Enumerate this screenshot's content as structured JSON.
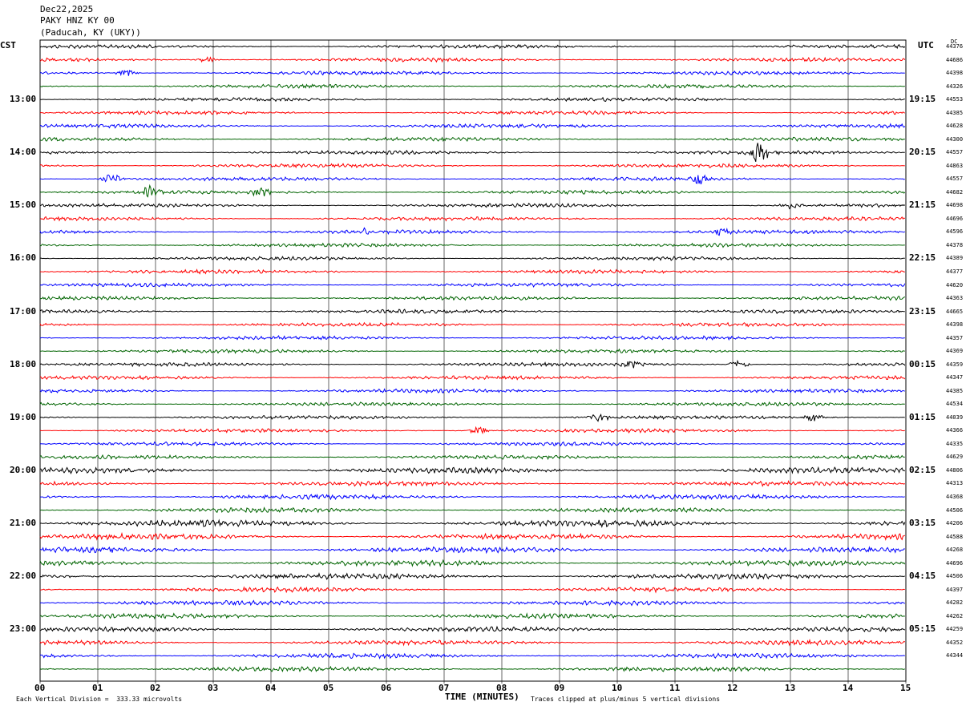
{
  "header": {
    "date": "Dec22,2025",
    "station": "PAKY HNZ KY 00",
    "location": "(Paducah, KY (UKY))"
  },
  "left_zone": "CST",
  "right_zone": "UTC",
  "dc_label": "DC",
  "footer": {
    "xlabel": "TIME (MINUTES)",
    "scale_note": "Each Vertical Division =  333.33 microvolts",
    "clip_note": "Traces clipped at plus/minus 5 vertical divisions"
  },
  "colors": {
    "cycle": [
      "#000000",
      "#ff0000",
      "#0000ff",
      "#006400"
    ],
    "grid": "#000000"
  },
  "chart_data": {
    "type": "line",
    "subtype": "helicorder",
    "title": "Dec22,2025 PAKY HNZ KY 00 (Paducah, KY (UKY))",
    "xlabel": "TIME (MINUTES)",
    "xlim": [
      0,
      15
    ],
    "x_ticks": [
      "00",
      "01",
      "02",
      "03",
      "04",
      "05",
      "06",
      "07",
      "08",
      "09",
      "10",
      "11",
      "12",
      "13",
      "14",
      "15"
    ],
    "lines_per_hour": 4,
    "line_count": 48,
    "left_hour_labels": [
      "13:00",
      "14:00",
      "15:00",
      "16:00",
      "17:00",
      "18:00",
      "19:00",
      "20:00",
      "21:00",
      "22:00",
      "23:00"
    ],
    "right_hour_labels": [
      "19:15",
      "20:15",
      "21:15",
      "22:15",
      "23:15",
      "00:15",
      "01:15",
      "02:15",
      "03:15",
      "04:15",
      "05:15"
    ],
    "dc_values": [
      "44376",
      "44686",
      "44398",
      "44326",
      "44553",
      "44385",
      "44628",
      "44300",
      "44557",
      "44863",
      "44557",
      "44682",
      "44698",
      "44696",
      "44596",
      "44378",
      "44389",
      "44377",
      "44620",
      "44363",
      "44665",
      "44398",
      "44357",
      "44369",
      "44359",
      "44347",
      "44385",
      "44534",
      "44039",
      "44366",
      "44335",
      "44629",
      "44806",
      "44313",
      "44368",
      "44506",
      "44206",
      "44588",
      "44268",
      "44696",
      "44506",
      "44397",
      "44282",
      "44262",
      "44259",
      "44352",
      "44344"
    ],
    "events": [
      {
        "line": 1,
        "minute": 2.9,
        "amp": 4
      },
      {
        "line": 2,
        "minute": 1.5,
        "amp": 4
      },
      {
        "line": 8,
        "minute": 12.45,
        "amp": 14
      },
      {
        "line": 10,
        "minute": 1.25,
        "amp": 7
      },
      {
        "line": 10,
        "minute": 11.4,
        "amp": 9
      },
      {
        "line": 11,
        "minute": 1.9,
        "amp": 7
      },
      {
        "line": 11,
        "minute": 3.85,
        "amp": 6
      },
      {
        "line": 12,
        "minute": 13.0,
        "amp": 4
      },
      {
        "line": 14,
        "minute": 5.6,
        "amp": 5
      },
      {
        "line": 14,
        "minute": 11.8,
        "amp": 5
      },
      {
        "line": 24,
        "minute": 10.25,
        "amp": 6
      },
      {
        "line": 24,
        "minute": 12.1,
        "amp": 5
      },
      {
        "line": 28,
        "minute": 9.7,
        "amp": 5
      },
      {
        "line": 28,
        "minute": 13.4,
        "amp": 6
      },
      {
        "line": 29,
        "minute": 7.6,
        "amp": 5
      }
    ],
    "noise_levels": [
      2,
      2,
      2,
      2,
      2,
      2,
      2,
      2,
      2,
      2,
      2,
      2,
      2,
      2,
      2,
      2,
      2,
      2,
      2,
      2,
      2,
      2,
      2,
      2,
      2,
      2,
      2,
      2,
      2,
      2,
      2,
      2,
      3,
      2.5,
      2.5,
      2.5,
      3.5,
      3,
      3,
      3,
      3,
      2.5,
      2.5,
      2.5,
      2.5,
      2.5,
      2.5,
      2.5
    ]
  }
}
